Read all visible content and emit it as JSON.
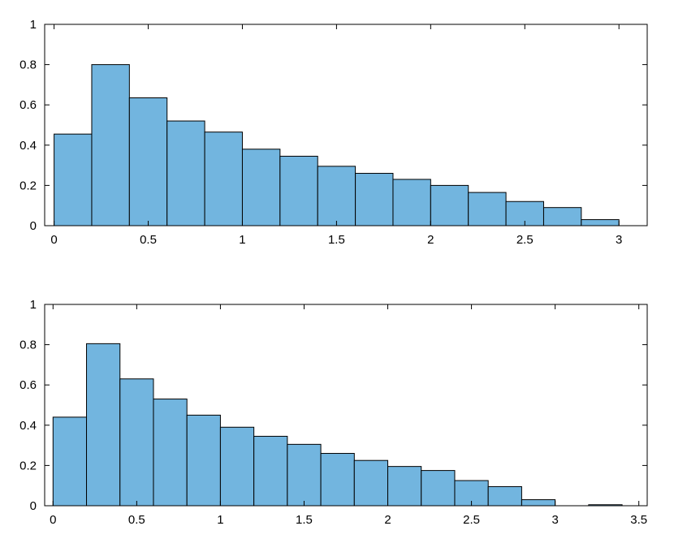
{
  "chart_data": [
    {
      "type": "bar",
      "subtype": "histogram",
      "bin_edges": [
        0,
        0.2,
        0.4,
        0.6,
        0.8,
        1.0,
        1.2,
        1.4,
        1.6,
        1.8,
        2.0,
        2.2,
        2.4,
        2.6,
        2.8,
        3.0
      ],
      "values": [
        0.455,
        0.8,
        0.635,
        0.52,
        0.465,
        0.38,
        0.345,
        0.295,
        0.26,
        0.23,
        0.2,
        0.165,
        0.12,
        0.09,
        0.03
      ],
      "xlim": [
        -0.05,
        3.15
      ],
      "ylim": [
        0,
        1
      ],
      "xticks": [
        0,
        0.5,
        1,
        1.5,
        2,
        2.5,
        3
      ],
      "xtick_labels": [
        "0",
        "0.5",
        "1",
        "1.5",
        "2",
        "2.5",
        "3"
      ],
      "yticks": [
        0,
        0.2,
        0.4,
        0.6,
        0.8,
        1
      ],
      "ytick_labels": [
        "0",
        "0.2",
        "0.4",
        "0.6",
        "0.8",
        "1"
      ],
      "bar_color": "#72b5df",
      "edge_color": "#000000",
      "title": "",
      "xlabel": "",
      "ylabel": "",
      "grid": false
    },
    {
      "type": "bar",
      "subtype": "histogram",
      "bin_edges": [
        0,
        0.2,
        0.4,
        0.6,
        0.8,
        1.0,
        1.2,
        1.4,
        1.6,
        1.8,
        2.0,
        2.2,
        2.4,
        2.6,
        2.8,
        3.0,
        3.2,
        3.4
      ],
      "values": [
        0.44,
        0.805,
        0.63,
        0.53,
        0.45,
        0.39,
        0.345,
        0.305,
        0.26,
        0.225,
        0.195,
        0.175,
        0.125,
        0.095,
        0.03,
        0,
        0.005
      ],
      "xlim": [
        -0.05,
        3.55
      ],
      "ylim": [
        0,
        1
      ],
      "xticks": [
        0,
        0.5,
        1,
        1.5,
        2,
        2.5,
        3,
        3.5
      ],
      "xtick_labels": [
        "0",
        "0.5",
        "1",
        "1.5",
        "2",
        "2.5",
        "3",
        "3.5"
      ],
      "yticks": [
        0,
        0.2,
        0.4,
        0.6,
        0.8,
        1
      ],
      "ytick_labels": [
        "0",
        "0.2",
        "0.4",
        "0.6",
        "0.8",
        "1"
      ],
      "bar_color": "#72b5df",
      "edge_color": "#000000",
      "title": "",
      "xlabel": "",
      "ylabel": "",
      "grid": false
    }
  ]
}
